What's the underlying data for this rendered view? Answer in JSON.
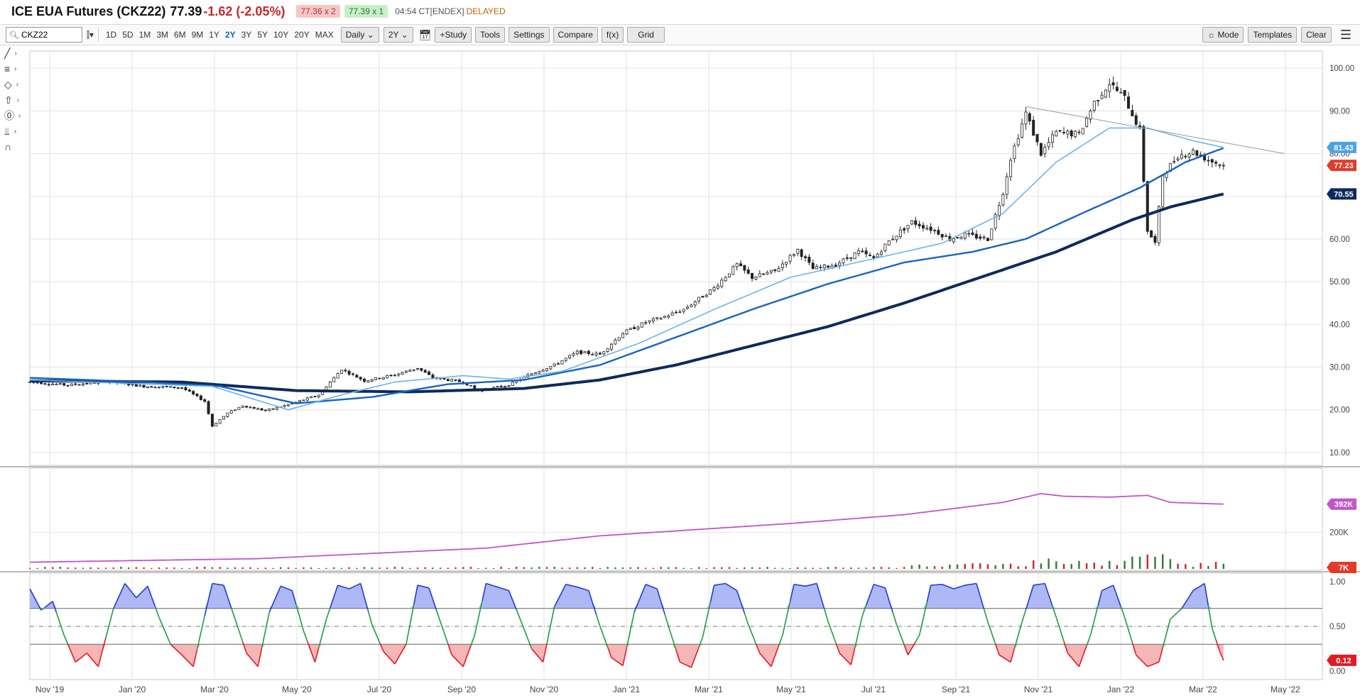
{
  "header": {
    "title": "ICE EUA Futures (CKZ22)",
    "price": "77.39",
    "change": "-1.62 (-2.05%)",
    "bid": "77.36 x 2",
    "ask": "77.39 x 1",
    "time": "04:54 CT[ENDEX]",
    "delayed": "DELAYED"
  },
  "toolbar": {
    "symbol": "CKZ22",
    "ranges": [
      "1D",
      "5D",
      "1M",
      "3M",
      "6M",
      "9M",
      "1Y",
      "2Y",
      "3Y",
      "5Y",
      "10Y",
      "20Y",
      "MAX"
    ],
    "active_range": "2Y",
    "interval": "Daily",
    "period": "2Y",
    "study": "+Study",
    "tools": "Tools",
    "settings": "Settings",
    "compare": "Compare",
    "fx": "f(x)",
    "grid": "Grid",
    "mode": "Mode",
    "templates": "Templates",
    "clear": "Clear"
  },
  "icons": [
    "search-icon",
    "candlestick-icon",
    "calendar-icon",
    "line-tool-icon",
    "channel-tool-icon",
    "shape-tool-icon",
    "arrow-tool-icon",
    "text-tool-icon",
    "measure-tool-icon",
    "magnet-icon",
    "menu-icon",
    "sun-icon"
  ],
  "colors": {
    "up": "#2e7d32",
    "down": "#c62828",
    "ma_fast": "#6cb4ea",
    "ma_mid": "#1565c0",
    "ma_slow": "#0d2a5c",
    "open_interest": "#c055c9",
    "stoch_upper": "#1f3bd1",
    "stoch_lower": "#e01b24",
    "stoch_mid": "#1b9e3e"
  },
  "chart_data": [
    {
      "type": "candlestick",
      "x_labels": [
        "Nov '19",
        "Jan '20",
        "Mar '20",
        "May '20",
        "Jul '20",
        "Sep '20",
        "Nov '20",
        "Jan '21",
        "Mar '21",
        "May '21",
        "Jul '21",
        "Sep '21",
        "Nov '21",
        "Jan '22",
        "Mar '22",
        "May '22"
      ],
      "y_ticks": [
        "100.00",
        "90.00",
        "80.00",
        "70.00",
        "60.00",
        "50.00",
        "40.00",
        "30.00",
        "20.00",
        "10.00"
      ],
      "ylim": [
        7,
        104
      ],
      "price_path": [
        [
          0,
          26.5
        ],
        [
          10,
          25.8
        ],
        [
          20,
          26.6
        ],
        [
          30,
          25.5
        ],
        [
          40,
          25.2
        ],
        [
          46,
          22.0
        ],
        [
          48,
          16.2
        ],
        [
          52,
          19.2
        ],
        [
          56,
          21.0
        ],
        [
          62,
          19.8
        ],
        [
          68,
          21.2
        ],
        [
          76,
          23.5
        ],
        [
          82,
          29.5
        ],
        [
          88,
          26.8
        ],
        [
          96,
          28.2
        ],
        [
          102,
          29.8
        ],
        [
          106,
          27.5
        ],
        [
          114,
          26.5
        ],
        [
          118,
          24.5
        ],
        [
          126,
          25.8
        ],
        [
          132,
          28.5
        ],
        [
          138,
          30.5
        ],
        [
          144,
          33.5
        ],
        [
          150,
          33.0
        ],
        [
          156,
          38.0
        ],
        [
          162,
          40.5
        ],
        [
          166,
          41.5
        ],
        [
          172,
          43.5
        ],
        [
          180,
          48.5
        ],
        [
          186,
          54.0
        ],
        [
          190,
          51.0
        ],
        [
          196,
          52.5
        ],
        [
          202,
          57.5
        ],
        [
          206,
          53.0
        ],
        [
          212,
          54.0
        ],
        [
          218,
          57.0
        ],
        [
          222,
          55.5
        ],
        [
          226,
          59.5
        ],
        [
          232,
          64.0
        ],
        [
          238,
          62.0
        ],
        [
          242,
          60.0
        ],
        [
          246,
          61.0
        ],
        [
          252,
          60.0
        ],
        [
          256,
          71.0
        ],
        [
          258,
          79.0
        ],
        [
          262,
          89.5
        ],
        [
          266,
          80.0
        ],
        [
          270,
          85.0
        ],
        [
          276,
          84.5
        ],
        [
          280,
          92.0
        ],
        [
          284,
          96.5
        ],
        [
          288,
          93.0
        ],
        [
          292,
          85.5
        ],
        [
          294,
          62.0
        ],
        [
          296,
          59.0
        ],
        [
          298,
          75.0
        ],
        [
          302,
          79.5
        ],
        [
          306,
          80.5
        ],
        [
          310,
          78.5
        ],
        [
          314,
          77.23
        ]
      ],
      "ma_fast": [
        [
          0,
          27.0
        ],
        [
          48,
          25.5
        ],
        [
          68,
          20.0
        ],
        [
          82,
          23.5
        ],
        [
          96,
          26.5
        ],
        [
          114,
          28.0
        ],
        [
          126,
          27.2
        ],
        [
          140,
          29.0
        ],
        [
          160,
          35.5
        ],
        [
          180,
          43.5
        ],
        [
          200,
          51.0
        ],
        [
          220,
          55.0
        ],
        [
          240,
          59.0
        ],
        [
          256,
          66.0
        ],
        [
          270,
          78.0
        ],
        [
          284,
          86.0
        ],
        [
          294,
          86.0
        ],
        [
          306,
          83.0
        ],
        [
          314,
          81.43
        ]
      ],
      "ma_mid": [
        [
          0,
          27.5
        ],
        [
          30,
          26.5
        ],
        [
          50,
          25.5
        ],
        [
          70,
          21.5
        ],
        [
          90,
          23.0
        ],
        [
          110,
          26.0
        ],
        [
          130,
          27.0
        ],
        [
          150,
          30.5
        ],
        [
          170,
          37.0
        ],
        [
          190,
          43.5
        ],
        [
          210,
          49.5
        ],
        [
          230,
          54.5
        ],
        [
          248,
          57.0
        ],
        [
          262,
          60.0
        ],
        [
          278,
          66.5
        ],
        [
          292,
          72.0
        ],
        [
          304,
          78.0
        ],
        [
          314,
          81.3
        ]
      ],
      "ma_slow": [
        [
          0,
          26.8
        ],
        [
          40,
          26.5
        ],
        [
          70,
          24.5
        ],
        [
          100,
          24.2
        ],
        [
          130,
          25.0
        ],
        [
          150,
          27.0
        ],
        [
          170,
          30.5
        ],
        [
          190,
          35.0
        ],
        [
          210,
          39.5
        ],
        [
          230,
          45.0
        ],
        [
          250,
          51.0
        ],
        [
          270,
          57.0
        ],
        [
          290,
          64.5
        ],
        [
          300,
          67.5
        ],
        [
          314,
          70.55
        ]
      ],
      "resistance_line": [
        [
          262,
          91.0
        ],
        [
          330,
          80.0
        ]
      ],
      "price_badges": [
        {
          "label": "81.43",
          "value": 81.43,
          "color": "#4aa3e8"
        },
        {
          "label": "77.23",
          "value": 77.23,
          "color": "#e23b2a"
        },
        {
          "label": "70.55",
          "value": 70.55,
          "color": "#0d2a5c"
        }
      ]
    },
    {
      "type": "area",
      "name": "open interest / volume",
      "y_ticks": [
        "200K"
      ],
      "badges": [
        {
          "label": "392K",
          "color": "#c055c9"
        },
        {
          "label": "7K",
          "color": "#e23b2a"
        }
      ],
      "oi_path": [
        [
          0,
          0.06
        ],
        [
          60,
          0.1
        ],
        [
          120,
          0.22
        ],
        [
          150,
          0.36
        ],
        [
          200,
          0.5
        ],
        [
          230,
          0.6
        ],
        [
          256,
          0.74
        ],
        [
          266,
          0.84
        ],
        [
          272,
          0.81
        ],
        [
          284,
          0.8
        ],
        [
          294,
          0.82
        ],
        [
          300,
          0.74
        ],
        [
          314,
          0.72
        ]
      ]
    },
    {
      "type": "line",
      "name": "stochastic",
      "y_ticks": [
        "1.00",
        "0.50",
        "0.00"
      ],
      "levels": [
        0.7,
        0.5,
        0.3
      ],
      "badge": {
        "label": "0.12",
        "color": "#e01b24"
      },
      "stoch_path": [
        [
          0,
          0.92
        ],
        [
          3,
          0.68
        ],
        [
          6,
          0.78
        ],
        [
          9,
          0.4
        ],
        [
          12,
          0.1
        ],
        [
          15,
          0.2
        ],
        [
          18,
          0.05
        ],
        [
          22,
          0.7
        ],
        [
          25,
          0.98
        ],
        [
          28,
          0.82
        ],
        [
          31,
          0.95
        ],
        [
          34,
          0.6
        ],
        [
          37,
          0.3
        ],
        [
          40,
          0.18
        ],
        [
          43,
          0.05
        ],
        [
          46,
          0.62
        ],
        [
          48,
          0.98
        ],
        [
          51,
          0.96
        ],
        [
          54,
          0.58
        ],
        [
          57,
          0.2
        ],
        [
          60,
          0.05
        ],
        [
          63,
          0.66
        ],
        [
          66,
          0.95
        ],
        [
          69,
          0.9
        ],
        [
          72,
          0.45
        ],
        [
          75,
          0.1
        ],
        [
          78,
          0.58
        ],
        [
          81,
          0.96
        ],
        [
          84,
          0.92
        ],
        [
          87,
          0.98
        ],
        [
          90,
          0.52
        ],
        [
          93,
          0.22
        ],
        [
          96,
          0.08
        ],
        [
          99,
          0.3
        ],
        [
          102,
          0.96
        ],
        [
          105,
          0.93
        ],
        [
          108,
          0.55
        ],
        [
          111,
          0.18
        ],
        [
          114,
          0.05
        ],
        [
          117,
          0.4
        ],
        [
          120,
          0.98
        ],
        [
          123,
          0.94
        ],
        [
          126,
          0.9
        ],
        [
          129,
          0.58
        ],
        [
          132,
          0.25
        ],
        [
          135,
          0.1
        ],
        [
          138,
          0.72
        ],
        [
          141,
          0.97
        ],
        [
          144,
          0.94
        ],
        [
          147,
          0.9
        ],
        [
          150,
          0.5
        ],
        [
          153,
          0.15
        ],
        [
          156,
          0.06
        ],
        [
          159,
          0.66
        ],
        [
          162,
          0.97
        ],
        [
          165,
          0.92
        ],
        [
          168,
          0.5
        ],
        [
          171,
          0.1
        ],
        [
          174,
          0.04
        ],
        [
          177,
          0.38
        ],
        [
          180,
          0.96
        ],
        [
          183,
          0.98
        ],
        [
          186,
          0.9
        ],
        [
          189,
          0.52
        ],
        [
          192,
          0.2
        ],
        [
          195,
          0.05
        ],
        [
          198,
          0.4
        ],
        [
          201,
          0.97
        ],
        [
          204,
          0.95
        ],
        [
          207,
          0.98
        ],
        [
          210,
          0.55
        ],
        [
          213,
          0.2
        ],
        [
          216,
          0.07
        ],
        [
          219,
          0.62
        ],
        [
          222,
          0.97
        ],
        [
          225,
          0.93
        ],
        [
          228,
          0.52
        ],
        [
          231,
          0.18
        ],
        [
          234,
          0.4
        ],
        [
          237,
          0.96
        ],
        [
          240,
          0.97
        ],
        [
          243,
          0.92
        ],
        [
          246,
          0.96
        ],
        [
          249,
          0.98
        ],
        [
          252,
          0.55
        ],
        [
          255,
          0.18
        ],
        [
          258,
          0.1
        ],
        [
          261,
          0.55
        ],
        [
          264,
          0.96
        ],
        [
          267,
          0.98
        ],
        [
          270,
          0.6
        ],
        [
          273,
          0.2
        ],
        [
          276,
          0.05
        ],
        [
          279,
          0.4
        ],
        [
          282,
          0.9
        ],
        [
          285,
          0.96
        ],
        [
          288,
          0.6
        ],
        [
          291,
          0.18
        ],
        [
          294,
          0.05
        ],
        [
          297,
          0.1
        ],
        [
          300,
          0.58
        ],
        [
          303,
          0.7
        ],
        [
          306,
          0.9
        ],
        [
          309,
          0.98
        ],
        [
          311,
          0.48
        ],
        [
          313,
          0.22
        ],
        [
          314,
          0.12
        ]
      ]
    }
  ]
}
